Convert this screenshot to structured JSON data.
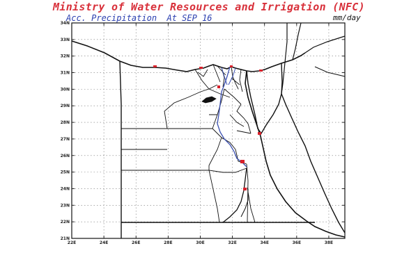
{
  "header": {
    "title": "Ministry of Water Resources and Irrigation (NFC)",
    "subtitle": "Acc. Precipitation  At SEP 16",
    "units": "mm/day"
  },
  "map": {
    "lat_ticks": [
      "34N",
      "33N",
      "32N",
      "31N",
      "30N",
      "29N",
      "28N",
      "27N",
      "26N",
      "25N",
      "24N",
      "23N",
      "22N",
      "21N"
    ],
    "lon_ticks": [
      "22E",
      "24E",
      "26E",
      "28E",
      "30E",
      "32E",
      "34E",
      "36E",
      "38E"
    ],
    "extent": {
      "lon": [
        22,
        39
      ],
      "lat": [
        21,
        34
      ]
    },
    "grid": "dotted",
    "colors": {
      "border": "#111111",
      "precip": "#d8202a",
      "river": "#3a4fb0",
      "title": "#d8303a",
      "subtitle": "#2a3fb0"
    }
  }
}
